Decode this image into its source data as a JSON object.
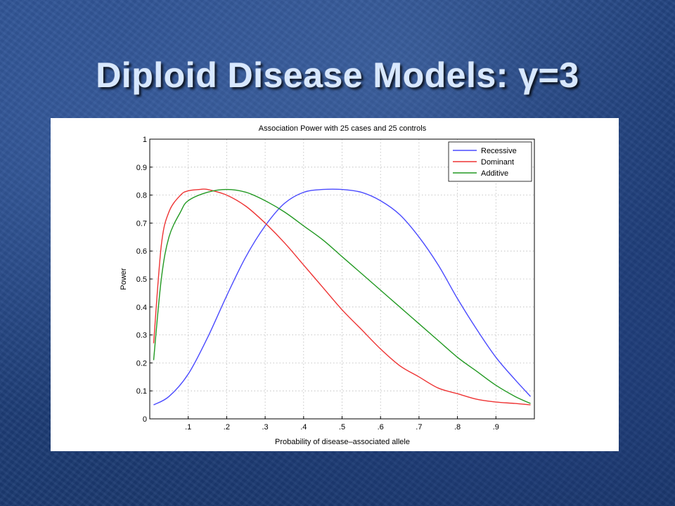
{
  "slide": {
    "title": "Diploid Disease Models: γ=3"
  },
  "chart_data": {
    "type": "line",
    "title": "Association Power with 25 cases and 25 controls",
    "xlabel": "Probability of disease–associated allele",
    "ylabel": "Power",
    "xlim": [
      0,
      1
    ],
    "ylim": [
      0,
      1
    ],
    "x_ticks": [
      0.1,
      0.2,
      0.3,
      0.4,
      0.5,
      0.6,
      0.7,
      0.8,
      0.9
    ],
    "x_tick_labels": [
      ".1",
      ".2",
      ".3",
      ".4",
      ".5",
      ".6",
      ".7",
      ".8",
      ".9"
    ],
    "y_ticks": [
      0,
      0.1,
      0.2,
      0.3,
      0.4,
      0.5,
      0.6,
      0.7,
      0.8,
      0.9,
      1
    ],
    "y_tick_labels": [
      "0",
      "0.1",
      "0.2",
      "0.3",
      "0.4",
      "0.5",
      "0.6",
      "0.7",
      "0.8",
      "0.9",
      "1"
    ],
    "grid": true,
    "legend_position": "top-right",
    "series": [
      {
        "name": "Recessive",
        "color": "#4a4aff",
        "x": [
          0.01,
          0.05,
          0.1,
          0.15,
          0.2,
          0.25,
          0.3,
          0.35,
          0.4,
          0.45,
          0.5,
          0.55,
          0.6,
          0.65,
          0.7,
          0.75,
          0.8,
          0.85,
          0.9,
          0.95,
          0.99
        ],
        "y": [
          0.05,
          0.08,
          0.16,
          0.29,
          0.44,
          0.58,
          0.69,
          0.77,
          0.81,
          0.82,
          0.82,
          0.81,
          0.78,
          0.73,
          0.65,
          0.55,
          0.43,
          0.32,
          0.22,
          0.14,
          0.08
        ]
      },
      {
        "name": "Dominant",
        "color": "#ee3333",
        "x": [
          0.01,
          0.03,
          0.05,
          0.08,
          0.1,
          0.13,
          0.15,
          0.2,
          0.25,
          0.3,
          0.35,
          0.4,
          0.45,
          0.5,
          0.55,
          0.6,
          0.65,
          0.7,
          0.75,
          0.8,
          0.85,
          0.9,
          0.95,
          0.99
        ],
        "y": [
          0.27,
          0.62,
          0.74,
          0.8,
          0.815,
          0.82,
          0.82,
          0.8,
          0.76,
          0.7,
          0.63,
          0.55,
          0.47,
          0.39,
          0.32,
          0.25,
          0.19,
          0.15,
          0.11,
          0.09,
          0.07,
          0.06,
          0.055,
          0.05
        ]
      },
      {
        "name": "Additive",
        "color": "#229922",
        "x": [
          0.01,
          0.03,
          0.05,
          0.08,
          0.1,
          0.15,
          0.2,
          0.25,
          0.3,
          0.35,
          0.4,
          0.45,
          0.5,
          0.55,
          0.6,
          0.65,
          0.7,
          0.75,
          0.8,
          0.85,
          0.9,
          0.95,
          0.99
        ],
        "y": [
          0.21,
          0.5,
          0.65,
          0.74,
          0.78,
          0.81,
          0.82,
          0.81,
          0.78,
          0.74,
          0.69,
          0.64,
          0.58,
          0.52,
          0.46,
          0.4,
          0.34,
          0.28,
          0.22,
          0.17,
          0.12,
          0.08,
          0.055
        ]
      }
    ]
  }
}
